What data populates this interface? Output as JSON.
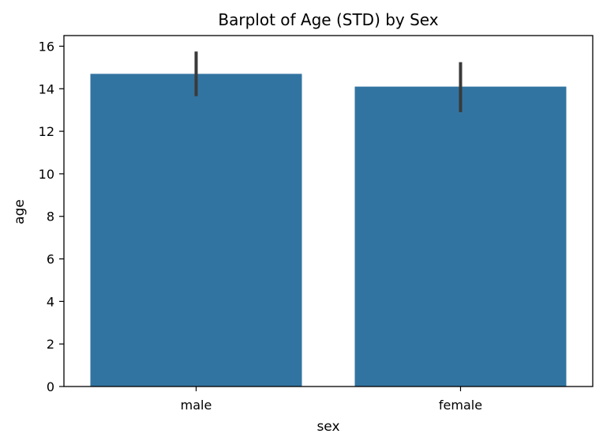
{
  "chart_data": {
    "type": "bar",
    "title": "Barplot of Age (STD) by Sex",
    "xlabel": "sex",
    "ylabel": "age",
    "categories": [
      "male",
      "female"
    ],
    "values": [
      14.7,
      14.1
    ],
    "error_bars": [
      {
        "low": 13.65,
        "high": 15.75
      },
      {
        "low": 12.9,
        "high": 15.25
      }
    ],
    "ylim": [
      0,
      16.5
    ],
    "yticks": [
      0,
      2,
      4,
      6,
      8,
      10,
      12,
      14,
      16
    ],
    "bar_color": "#3274a1",
    "errorbar_color": "#3a3a3a",
    "grid": false,
    "legend": null
  }
}
